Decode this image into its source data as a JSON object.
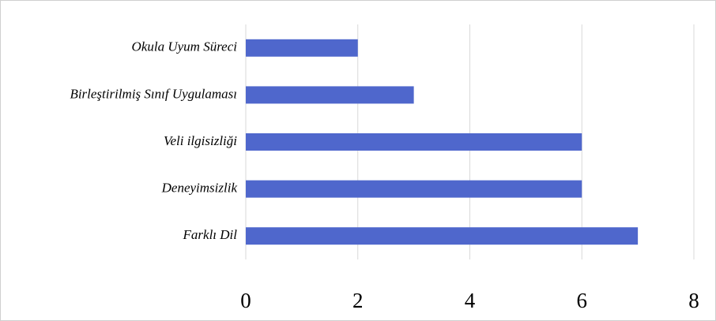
{
  "chart_data": {
    "type": "bar",
    "orientation": "horizontal",
    "categories": [
      "Okula Uyum Süreci",
      "Birleştirilmiş Sınıf Uygulaması",
      "Veli ilgisizliği",
      "Deneyimsizlik",
      "Farklı Dil"
    ],
    "values": [
      2,
      3,
      6,
      6,
      7
    ],
    "color": "#4f67cc",
    "xlim": [
      0,
      8
    ],
    "xticks": [
      0,
      2,
      4,
      6,
      8
    ],
    "grid": true
  }
}
